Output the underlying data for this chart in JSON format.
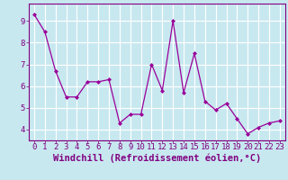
{
  "x": [
    0,
    1,
    2,
    3,
    4,
    5,
    6,
    7,
    8,
    9,
    10,
    11,
    12,
    13,
    14,
    15,
    16,
    17,
    18,
    19,
    20,
    21,
    22,
    23
  ],
  "y": [
    9.3,
    8.5,
    6.7,
    5.5,
    5.5,
    6.2,
    6.2,
    6.3,
    4.3,
    4.7,
    4.7,
    7.0,
    5.8,
    9.0,
    5.7,
    7.5,
    5.3,
    4.9,
    5.2,
    4.5,
    3.8,
    4.1,
    4.3,
    4.4
  ],
  "line_color": "#990099",
  "marker": "D",
  "marker_size": 2.0,
  "bg_color": "#c8e8f0",
  "grid_color": "#ffffff",
  "xlabel": "Windchill (Refroidissement éolien,°C)",
  "xlabel_color": "#800080",
  "xlabel_fontsize": 7.5,
  "tick_color": "#800080",
  "tick_fontsize": 6.5,
  "ylim": [
    3.5,
    9.8
  ],
  "xlim": [
    -0.5,
    23.5
  ],
  "yticks": [
    4,
    5,
    6,
    7,
    8,
    9
  ],
  "xticks": [
    0,
    1,
    2,
    3,
    4,
    5,
    6,
    7,
    8,
    9,
    10,
    11,
    12,
    13,
    14,
    15,
    16,
    17,
    18,
    19,
    20,
    21,
    22,
    23
  ]
}
